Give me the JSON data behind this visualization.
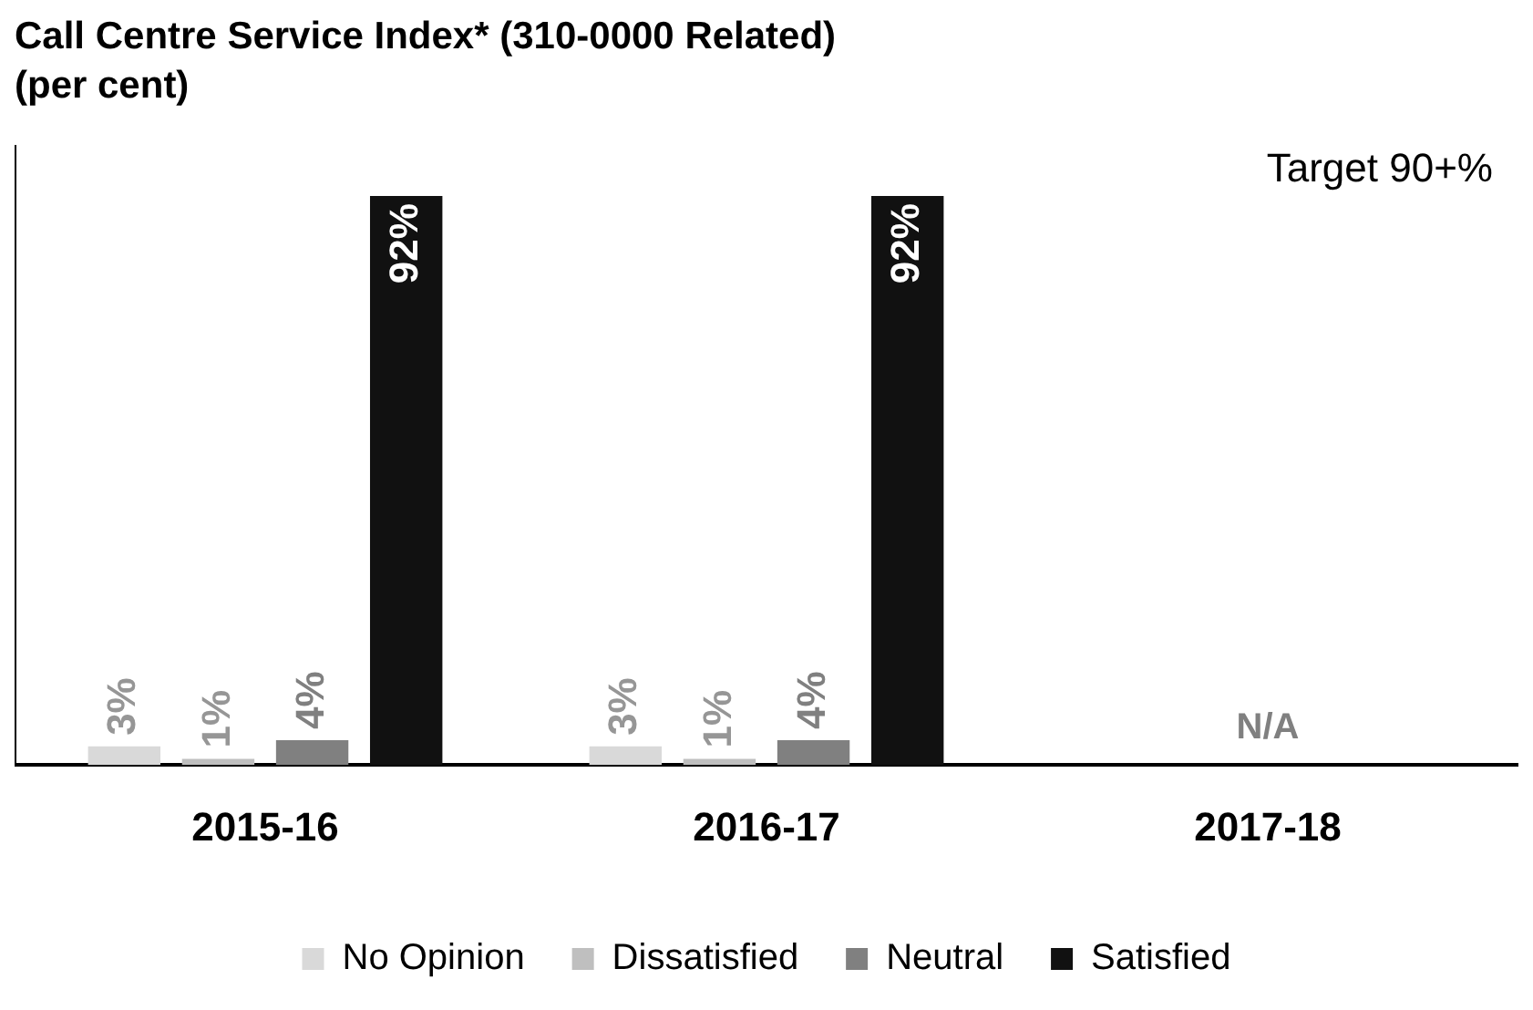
{
  "chart_data": {
    "type": "bar",
    "title": "Call Centre Service Index* (310-0000 Related)",
    "subtitle": "(per cent)",
    "categories": [
      "2015-16",
      "2016-17",
      "2017-18"
    ],
    "series": [
      {
        "name": "No Opinion",
        "color": "#d9d9d9",
        "values": [
          3,
          3,
          null
        ],
        "value_labels": [
          "3%",
          "3%",
          null
        ]
      },
      {
        "name": "Dissatisfied",
        "color": "#bfbfbf",
        "values": [
          1,
          1,
          null
        ],
        "value_labels": [
          "1%",
          "1%",
          null
        ]
      },
      {
        "name": "Neutral",
        "color": "#808080",
        "values": [
          4,
          4,
          null
        ],
        "value_labels": [
          "4%",
          "4%",
          null
        ]
      },
      {
        "name": "Satisfied",
        "color": "#111111",
        "values": [
          92,
          92,
          null
        ],
        "value_labels": [
          "92%",
          "92%",
          null
        ]
      }
    ],
    "annotations": [
      "Target 90+%",
      "N/A"
    ],
    "legend": "bottom",
    "grid": false,
    "tick_labels": "x"
  }
}
